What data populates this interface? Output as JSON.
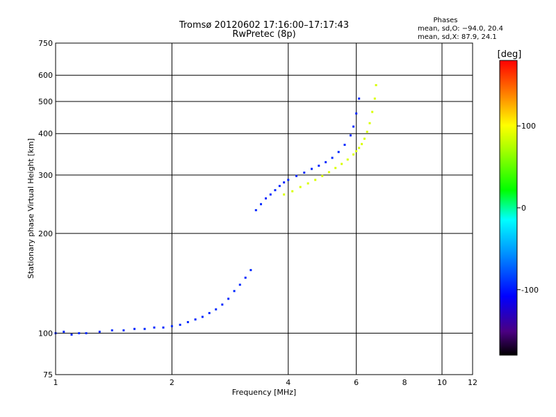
{
  "chart_data": {
    "type": "scatter",
    "title": "Tromsø 20120602 17:16:00–17:17:43",
    "subtitle": "RwPretec (8p)",
    "xlabel": "Frequency [MHz]",
    "ylabel": "Stationary phase Virtual Height [km]",
    "xscale": "log",
    "yscale": "log",
    "xlim": [
      1,
      12
    ],
    "ylim": [
      75,
      750
    ],
    "x_ticks": [
      1,
      2,
      4,
      6,
      8,
      10,
      12
    ],
    "y_ticks": [
      75,
      100,
      200,
      300,
      400,
      500,
      600,
      750
    ],
    "x_grid": [
      2,
      4,
      6,
      10
    ],
    "y_grid": [
      100,
      200,
      300,
      400,
      500,
      600
    ],
    "grid": true,
    "legend": {
      "heading": "Phases",
      "line1": "mean, sd,O: −94.0, 20.4",
      "line2": "mean, sd,X:  87.9, 24.1",
      "placement": "top-right"
    },
    "colorbar": {
      "label": "[deg]",
      "range": [
        -180,
        180
      ],
      "ticks": [
        100,
        0,
        -100
      ],
      "colormap": "rainbow",
      "placement": "right"
    },
    "series": [
      {
        "mode": "O",
        "color_value": -94,
        "points": [
          [
            1.0,
            100
          ],
          [
            1.05,
            101
          ],
          [
            1.1,
            99
          ],
          [
            1.15,
            100
          ],
          [
            1.2,
            100
          ],
          [
            1.3,
            101
          ],
          [
            1.4,
            102
          ],
          [
            1.5,
            102
          ],
          [
            1.6,
            103
          ],
          [
            1.7,
            103
          ],
          [
            1.8,
            104
          ],
          [
            1.9,
            104
          ],
          [
            2.0,
            105
          ],
          [
            2.1,
            106
          ],
          [
            2.2,
            108
          ],
          [
            2.3,
            110
          ],
          [
            2.4,
            112
          ],
          [
            2.5,
            115
          ],
          [
            2.6,
            118
          ],
          [
            2.7,
            122
          ],
          [
            2.8,
            127
          ],
          [
            2.9,
            134
          ],
          [
            3.0,
            140
          ],
          [
            3.1,
            147
          ],
          [
            3.2,
            155
          ],
          [
            3.3,
            235
          ],
          [
            3.4,
            245
          ],
          [
            3.5,
            255
          ],
          [
            3.6,
            262
          ],
          [
            3.7,
            270
          ],
          [
            3.8,
            278
          ],
          [
            3.9,
            285
          ],
          [
            4.0,
            290
          ],
          [
            4.2,
            298
          ],
          [
            4.4,
            305
          ],
          [
            4.6,
            313
          ],
          [
            4.8,
            320
          ],
          [
            5.0,
            328
          ],
          [
            5.2,
            338
          ],
          [
            5.4,
            352
          ],
          [
            5.6,
            370
          ],
          [
            5.8,
            395
          ],
          [
            5.9,
            420
          ],
          [
            6.0,
            460
          ],
          [
            6.1,
            510
          ]
        ]
      },
      {
        "mode": "X",
        "color_value": 88,
        "points": [
          [
            3.9,
            262
          ],
          [
            4.1,
            268
          ],
          [
            4.3,
            276
          ],
          [
            4.5,
            283
          ],
          [
            4.7,
            290
          ],
          [
            4.9,
            298
          ],
          [
            5.1,
            306
          ],
          [
            5.3,
            315
          ],
          [
            5.5,
            324
          ],
          [
            5.7,
            334
          ],
          [
            5.9,
            346
          ],
          [
            6.0,
            354
          ],
          [
            6.1,
            362
          ],
          [
            6.2,
            372
          ],
          [
            6.3,
            386
          ],
          [
            6.4,
            405
          ],
          [
            6.5,
            430
          ],
          [
            6.6,
            465
          ],
          [
            6.7,
            510
          ],
          [
            6.75,
            560
          ]
        ]
      }
    ]
  }
}
